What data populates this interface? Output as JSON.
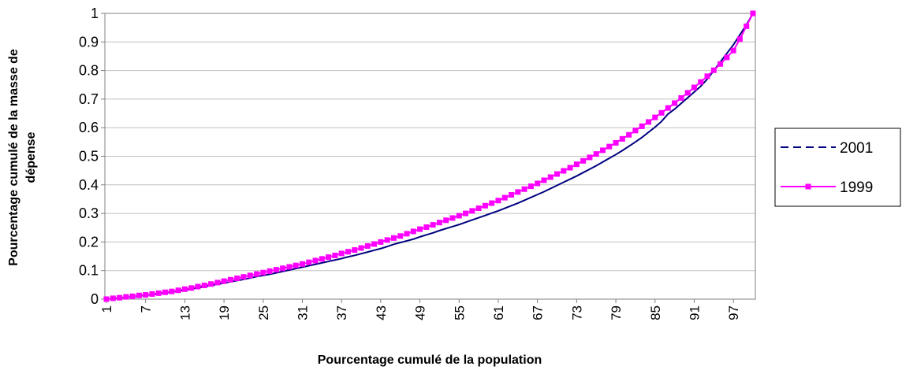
{
  "chart_data": {
    "type": "line",
    "x_label": "Pourcentage cumulé de la population",
    "y_label": [
      "Pourcentage cumulé de la masse de",
      "dépense"
    ],
    "categories": [
      1,
      null,
      null,
      null,
      null,
      null,
      7,
      null,
      null,
      null,
      null,
      null,
      13,
      null,
      null,
      null,
      null,
      null,
      19,
      null,
      null,
      null,
      null,
      null,
      25,
      null,
      null,
      null,
      null,
      null,
      31,
      null,
      null,
      null,
      null,
      null,
      37,
      null,
      null,
      null,
      null,
      null,
      43,
      null,
      null,
      null,
      null,
      null,
      49,
      null,
      null,
      null,
      null,
      null,
      55,
      null,
      null,
      null,
      null,
      null,
      61,
      null,
      null,
      null,
      null,
      null,
      67,
      null,
      null,
      null,
      null,
      null,
      73,
      null,
      null,
      null,
      null,
      null,
      79,
      null,
      null,
      null,
      null,
      null,
      85,
      null,
      null,
      null,
      null,
      null,
      91,
      null,
      null,
      null,
      null,
      null,
      97,
      null,
      null,
      null
    ],
    "series": [
      {
        "name": "2001",
        "color": "#000080",
        "marker": false,
        "values": [
          0,
          0.002,
          0.004,
          0.006,
          0.009,
          0.011,
          0.014,
          0.016,
          0.019,
          0.022,
          0.025,
          0.028,
          0.032,
          0.036,
          0.04,
          0.044,
          0.048,
          0.052,
          0.056,
          0.061,
          0.065,
          0.069,
          0.074,
          0.079,
          0.083,
          0.087,
          0.092,
          0.097,
          0.102,
          0.107,
          0.112,
          0.117,
          0.122,
          0.127,
          0.132,
          0.137,
          0.142,
          0.148,
          0.153,
          0.159,
          0.165,
          0.171,
          0.177,
          0.184,
          0.192,
          0.198,
          0.204,
          0.21,
          0.218,
          0.225,
          0.232,
          0.24,
          0.247,
          0.254,
          0.261,
          0.269,
          0.277,
          0.285,
          0.293,
          0.301,
          0.309,
          0.318,
          0.327,
          0.336,
          0.346,
          0.356,
          0.366,
          0.376,
          0.387,
          0.398,
          0.409,
          0.42,
          0.431,
          0.443,
          0.455,
          0.467,
          0.48,
          0.493,
          0.506,
          0.52,
          0.535,
          0.55,
          0.566,
          0.584,
          0.602,
          0.622,
          0.648,
          0.665,
          0.685,
          0.705,
          0.725,
          0.745,
          0.77,
          0.8,
          0.83,
          0.86,
          0.89,
          0.925,
          0.96,
          1
        ]
      },
      {
        "name": "1999",
        "color": "#ff00ff",
        "marker": true,
        "values": [
          0,
          0.003,
          0.005,
          0.008,
          0.01,
          0.013,
          0.015,
          0.018,
          0.021,
          0.024,
          0.027,
          0.031,
          0.035,
          0.039,
          0.044,
          0.048,
          0.053,
          0.058,
          0.063,
          0.068,
          0.073,
          0.078,
          0.083,
          0.088,
          0.093,
          0.098,
          0.103,
          0.108,
          0.113,
          0.118,
          0.123,
          0.129,
          0.135,
          0.141,
          0.147,
          0.153,
          0.16,
          0.166,
          0.172,
          0.179,
          0.186,
          0.193,
          0.2,
          0.207,
          0.214,
          0.221,
          0.229,
          0.237,
          0.245,
          0.252,
          0.26,
          0.268,
          0.276,
          0.284,
          0.292,
          0.3,
          0.309,
          0.318,
          0.327,
          0.336,
          0.345,
          0.355,
          0.365,
          0.375,
          0.385,
          0.395,
          0.405,
          0.416,
          0.427,
          0.438,
          0.449,
          0.46,
          0.472,
          0.484,
          0.496,
          0.508,
          0.521,
          0.534,
          0.547,
          0.561,
          0.575,
          0.59,
          0.605,
          0.62,
          0.636,
          0.652,
          0.669,
          0.686,
          0.704,
          0.722,
          0.741,
          0.76,
          0.78,
          0.801,
          0.823,
          0.846,
          0.87,
          0.91,
          0.955,
          1
        ]
      }
    ],
    "ylim": [
      0,
      1
    ],
    "yticks": [
      0,
      0.1,
      0.2,
      0.3,
      0.4,
      0.5,
      0.6,
      0.7,
      0.8,
      0.9,
      1
    ],
    "grid": true,
    "legend": "right"
  }
}
